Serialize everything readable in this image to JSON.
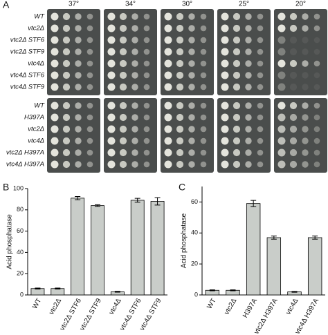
{
  "panels": [
    "A",
    "B",
    "C"
  ],
  "spot_assay": {
    "temperatures": [
      "37°",
      "34°",
      "30°",
      "25°",
      "20°"
    ],
    "strain_groups": [
      [
        "WT",
        "vtc2Δ",
        "vtc2Δ STF6",
        "vtc2Δ STF9",
        "vtc4Δ",
        "vtc4Δ STF6",
        "vtc4Δ STF9"
      ],
      [
        "WT",
        "H397A",
        "vtc2Δ",
        "vtc4Δ",
        "vtc2Δ H397A",
        "vtc4Δ H397A"
      ]
    ]
  },
  "chart_data": [
    {
      "type": "bar",
      "y_label": "Acid phosphatase",
      "color": "#c9cdc9",
      "categories": [
        "WT",
        "vtc2Δ",
        "vtc2Δ STF6",
        "vtc2Δ STF9",
        "vtc4Δ",
        "vtc4Δ STF6",
        "vtc4Δ STF9"
      ],
      "values": [
        6,
        6,
        91,
        84,
        3,
        89,
        88
      ],
      "errors": [
        0.5,
        0.5,
        1.5,
        0.8,
        0.4,
        1.8,
        3.5
      ],
      "ylim": [
        0,
        100
      ],
      "yticks": [
        0,
        20,
        40,
        60,
        80,
        100
      ]
    },
    {
      "type": "bar",
      "y_label": "Acid phosphatase",
      "color": "#c9cdc9",
      "categories": [
        "WT",
        "vtc2Δ",
        "H397A",
        "vtc2Δ H397A",
        "vtc4Δ",
        "vtc4Δ H397A"
      ],
      "values": [
        3,
        3,
        59,
        37,
        2,
        37
      ],
      "errors": [
        0.3,
        0.3,
        2,
        1,
        0.3,
        1
      ],
      "ylim": [
        0,
        70
      ],
      "yticks": [
        0,
        20,
        40,
        60
      ]
    }
  ]
}
